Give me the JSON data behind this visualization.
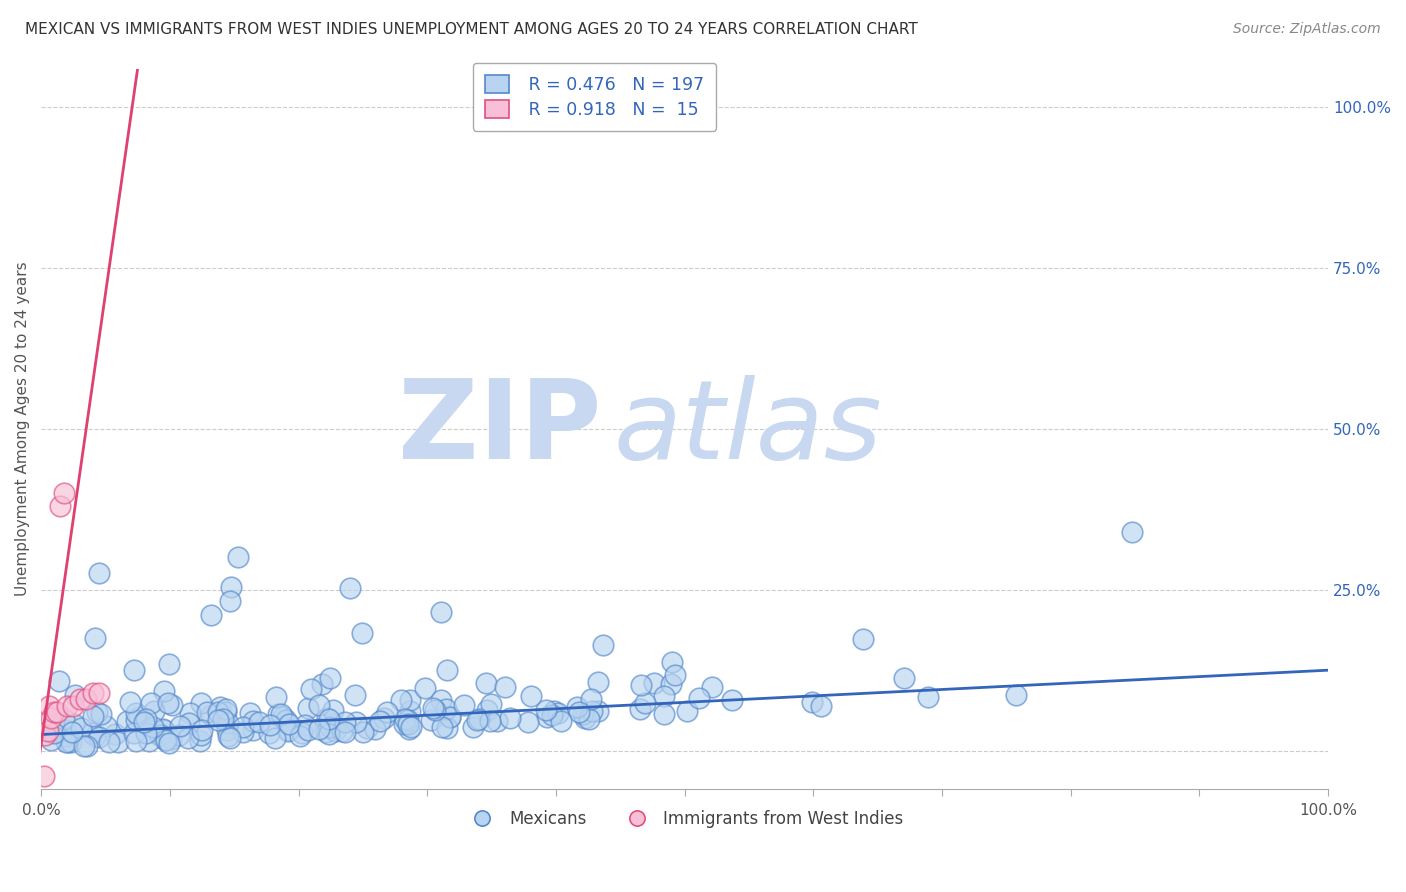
{
  "title": "MEXICAN VS IMMIGRANTS FROM WEST INDIES UNEMPLOYMENT AMONG AGES 20 TO 24 YEARS CORRELATION CHART",
  "source": "Source: ZipAtlas.com",
  "ylabel": "Unemployment Among Ages 20 to 24 years",
  "series1_label": "Mexicans",
  "series2_label": "Immigrants from West Indies",
  "series1_face_color": "#b8d4f0",
  "series2_face_color": "#f8c0d8",
  "series1_edge_color": "#5588cc",
  "series2_edge_color": "#e05080",
  "series1_line_color": "#3366bb",
  "series2_line_color": "#e04070",
  "series1_R": "0.476",
  "series1_N": "197",
  "series2_R": "0.918",
  "series2_N": "15",
  "watermark_zip": "ZIP",
  "watermark_atlas": "atlas",
  "watermark_color": "#c8d8f0",
  "background_color": "#ffffff",
  "grid_color": "#cccccc",
  "legend_text_color": "#3366bb",
  "right_axis_color": "#3366bb",
  "title_color": "#333333",
  "source_color": "#888888",
  "ylabel_color": "#555555",
  "xlim": [
    0.0,
    1.0
  ],
  "ylim": [
    -0.06,
    1.06
  ],
  "x_ticks": [
    0.0,
    0.1,
    0.2,
    0.3,
    0.4,
    0.5,
    0.6,
    0.7,
    0.8,
    0.9,
    1.0
  ],
  "y_ticks_right": [
    0.0,
    0.25,
    0.5,
    0.75,
    1.0
  ],
  "y_tick_labels_right": [
    "",
    "25.0%",
    "50.0%",
    "75.0%",
    "100.0%"
  ],
  "slope1": 0.1,
  "intercept1": 0.025,
  "slope2": 14.0,
  "intercept2": 0.01
}
